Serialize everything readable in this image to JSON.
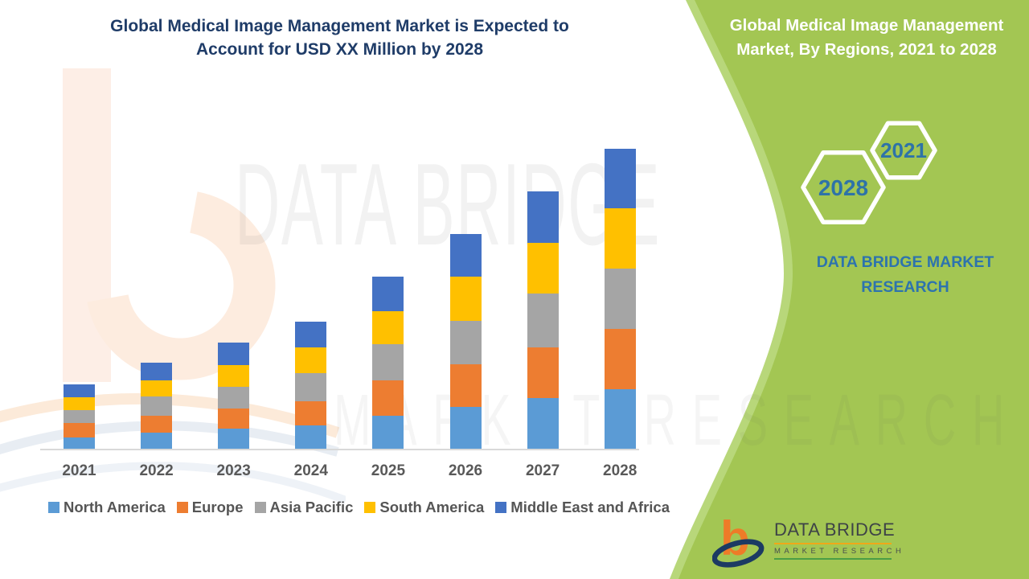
{
  "page_title": "Global Medical Image Management Market infographic",
  "header": {
    "left_title": {
      "line1": "Global Medical Image Management Market is Expected to",
      "line2": "Account for USD XX Million by 2028"
    },
    "right_title": {
      "line1": "Global Medical Image Management",
      "line2": "Market, By Regions, 2021 to 2028"
    }
  },
  "side_panel": {
    "hexagon_small_label": "2021",
    "hexagon_large_label": "2028",
    "brand": {
      "line1": "DATA BRIDGE MARKET",
      "line2": "RESEARCH"
    }
  },
  "watermark": {
    "line1": "DATA BRIDGE",
    "line2": "MARKET RESEARCH"
  },
  "footer_logo": {
    "b_glyph": "b",
    "name": "DATA BRIDGE",
    "subtitle": "MARKET RESEARCH"
  },
  "colors": {
    "panel_green": "#a3c653",
    "panel_green_edge": "#b8d77a",
    "title_navy": "#1f3c68",
    "hexagon_year_text": "#2e73a8",
    "brand_blue": "#2d73ae",
    "axis_line": "#d9d9d9",
    "axis_text": "#595959",
    "legend_text": "#555555",
    "logo_orange": "#ee7b28",
    "logo_navy": "#1c3a63",
    "logo_text_gray": "#3e4347",
    "logo_rule_orange": "#f0a818",
    "logo_rule_green": "#4c9e45"
  },
  "chart_data": {
    "type": "bar",
    "stacked": true,
    "title": "Global Medical Image Management Market, By Regions, 2021 to 2028",
    "categories": [
      "2021",
      "2022",
      "2023",
      "2024",
      "2025",
      "2026",
      "2027",
      "2028"
    ],
    "series": [
      {
        "name": "North America",
        "color": "#5b9bd5",
        "values": [
          15,
          21,
          26,
          30,
          42,
          53,
          64,
          75
        ]
      },
      {
        "name": "Europe",
        "color": "#ed7d31",
        "values": [
          18,
          21,
          25,
          30,
          44,
          53,
          63,
          75
        ]
      },
      {
        "name": "Asia Pacific",
        "color": "#a5a5a5",
        "values": [
          16,
          24,
          27,
          35,
          45,
          54,
          67,
          75
        ]
      },
      {
        "name": "South America",
        "color": "#ffc000",
        "values": [
          16,
          20,
          27,
          32,
          41,
          55,
          63,
          75
        ]
      },
      {
        "name": "Middle East and Africa",
        "color": "#4472c4",
        "values": [
          16,
          22,
          28,
          32,
          43,
          53,
          64,
          74
        ]
      }
    ],
    "stack_order_bottom_to_top": [
      "North America",
      "Europe",
      "Asia Pacific",
      "South America",
      "Middle East and Africa"
    ],
    "values_unit": "relative index (actual market size masked as 'USD XX Million')",
    "totals_by_year": [
      81,
      108,
      133,
      159,
      215,
      268,
      321,
      374
    ],
    "xlabel": "",
    "ylabel": "",
    "y_axis_shown": false,
    "grid": false,
    "legend_position": "bottom"
  }
}
